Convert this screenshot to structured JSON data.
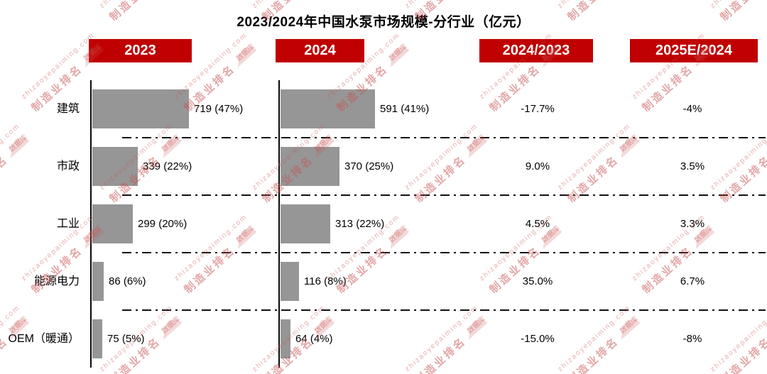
{
  "title": "2023/2024年中国水泵市场规模-分行业（亿元）",
  "columns": [
    {
      "label": "2023"
    },
    {
      "label": "2024"
    },
    {
      "label": "2024/2023"
    },
    {
      "label": "2025E/2024"
    }
  ],
  "chart_data": {
    "type": "bar",
    "orientation": "horizontal",
    "unit": "亿元",
    "categories": [
      "建筑",
      "市政",
      "工业",
      "能源电力",
      "OEM（暖通）"
    ],
    "series": [
      {
        "name": "2023",
        "values": [
          719,
          339,
          299,
          86,
          75
        ],
        "labels": [
          "719 (47%)",
          "339 (22%)",
          "299 (20%)",
          "86 (6%)",
          "75 (5%)"
        ]
      },
      {
        "name": "2024",
        "values": [
          591,
          370,
          313,
          116,
          64
        ],
        "labels": [
          "591 (41%)",
          "370 (25%)",
          "313 (22%)",
          "116 (8%)",
          "64 (4%)"
        ]
      }
    ],
    "growth_columns": [
      {
        "name": "2024/2023",
        "values": [
          "-17.7%",
          "9.0%",
          "4.5%",
          "35.0%",
          "-15.0%"
        ]
      },
      {
        "name": "2025E/2024",
        "values": [
          "-4%",
          "3.5%",
          "3.3%",
          "6.7%",
          "-8%"
        ]
      }
    ],
    "legend_position": "top",
    "grid": "dash-dot row separators"
  },
  "watermark": {
    "url": "zhizaoyepaiming.com",
    "name": "制造业排名",
    "cloud_text": "数据库"
  },
  "colors": {
    "accent_red": "#C00000",
    "bar_gray": "#969696",
    "text": "#000000",
    "watermark_pink": "#C75050"
  }
}
